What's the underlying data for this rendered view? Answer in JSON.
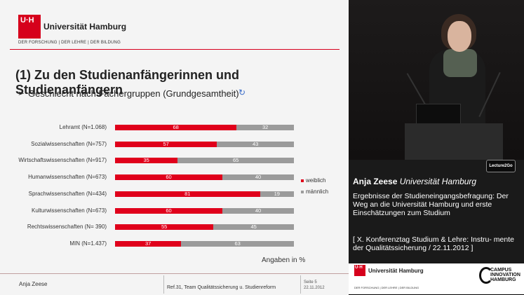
{
  "slide": {
    "logo_mark": "U·H",
    "university": "Universität Hamburg",
    "tagline": "DER FORSCHUNG | DER LEHRE | DER BILDUNG",
    "title": "(1) Zu den Studienanfängerinnen und Studienanfängern",
    "subtitle": "Geschlecht nach Fächergruppen (Grundgesamtheit)",
    "bullet": "➢",
    "refresh_icon": "↻",
    "units_note": "Angaben in %",
    "footer": {
      "author": "Anja Zeese",
      "reference": "Ref.31, Team Qualitätssicherung u. Studienreform",
      "page": "Seite 5",
      "date": "22.11.2012"
    }
  },
  "chart_data": {
    "type": "bar",
    "orientation": "horizontal",
    "stacked": true,
    "categories": [
      "Lehramt (N=1.068)",
      "Sozialwissenschaften (N=757)",
      "Wirtschaftswissenschaften (N=917)",
      "Humanwissenschaften (N=673)",
      "Sprachwissenschaften (N=434)",
      "Kulturwissenschaften (N=673)",
      "Rechtswissenschaften (N= 390)",
      "MIN (N=1.437)"
    ],
    "series": [
      {
        "name": "weiblich",
        "color": "#e0001b",
        "values": [
          68,
          57,
          35,
          60,
          81,
          60,
          55,
          37
        ]
      },
      {
        "name": "männlich",
        "color": "#9b9b9b",
        "values": [
          32,
          43,
          65,
          40,
          19,
          40,
          45,
          63
        ]
      }
    ],
    "xlim": [
      0,
      100
    ],
    "legend_position": "right"
  },
  "speaker": {
    "name": "Anja Zeese",
    "affiliation": "Universität Hamburg",
    "talk_title": "Ergebnisse der Studieneingangsbefragung: Der Weg an die Universität Hamburg und erste Einschätzungen zum Studium",
    "conference": "[ X. Konferenztag Studium & Lehre: Instru- mente der Qualitätssicherung / 22.11.2012 ]"
  },
  "badges": {
    "lecture2go": "Lecture2Go",
    "campus_logo": "CAMPUS INNOVATION HAMBURG"
  }
}
